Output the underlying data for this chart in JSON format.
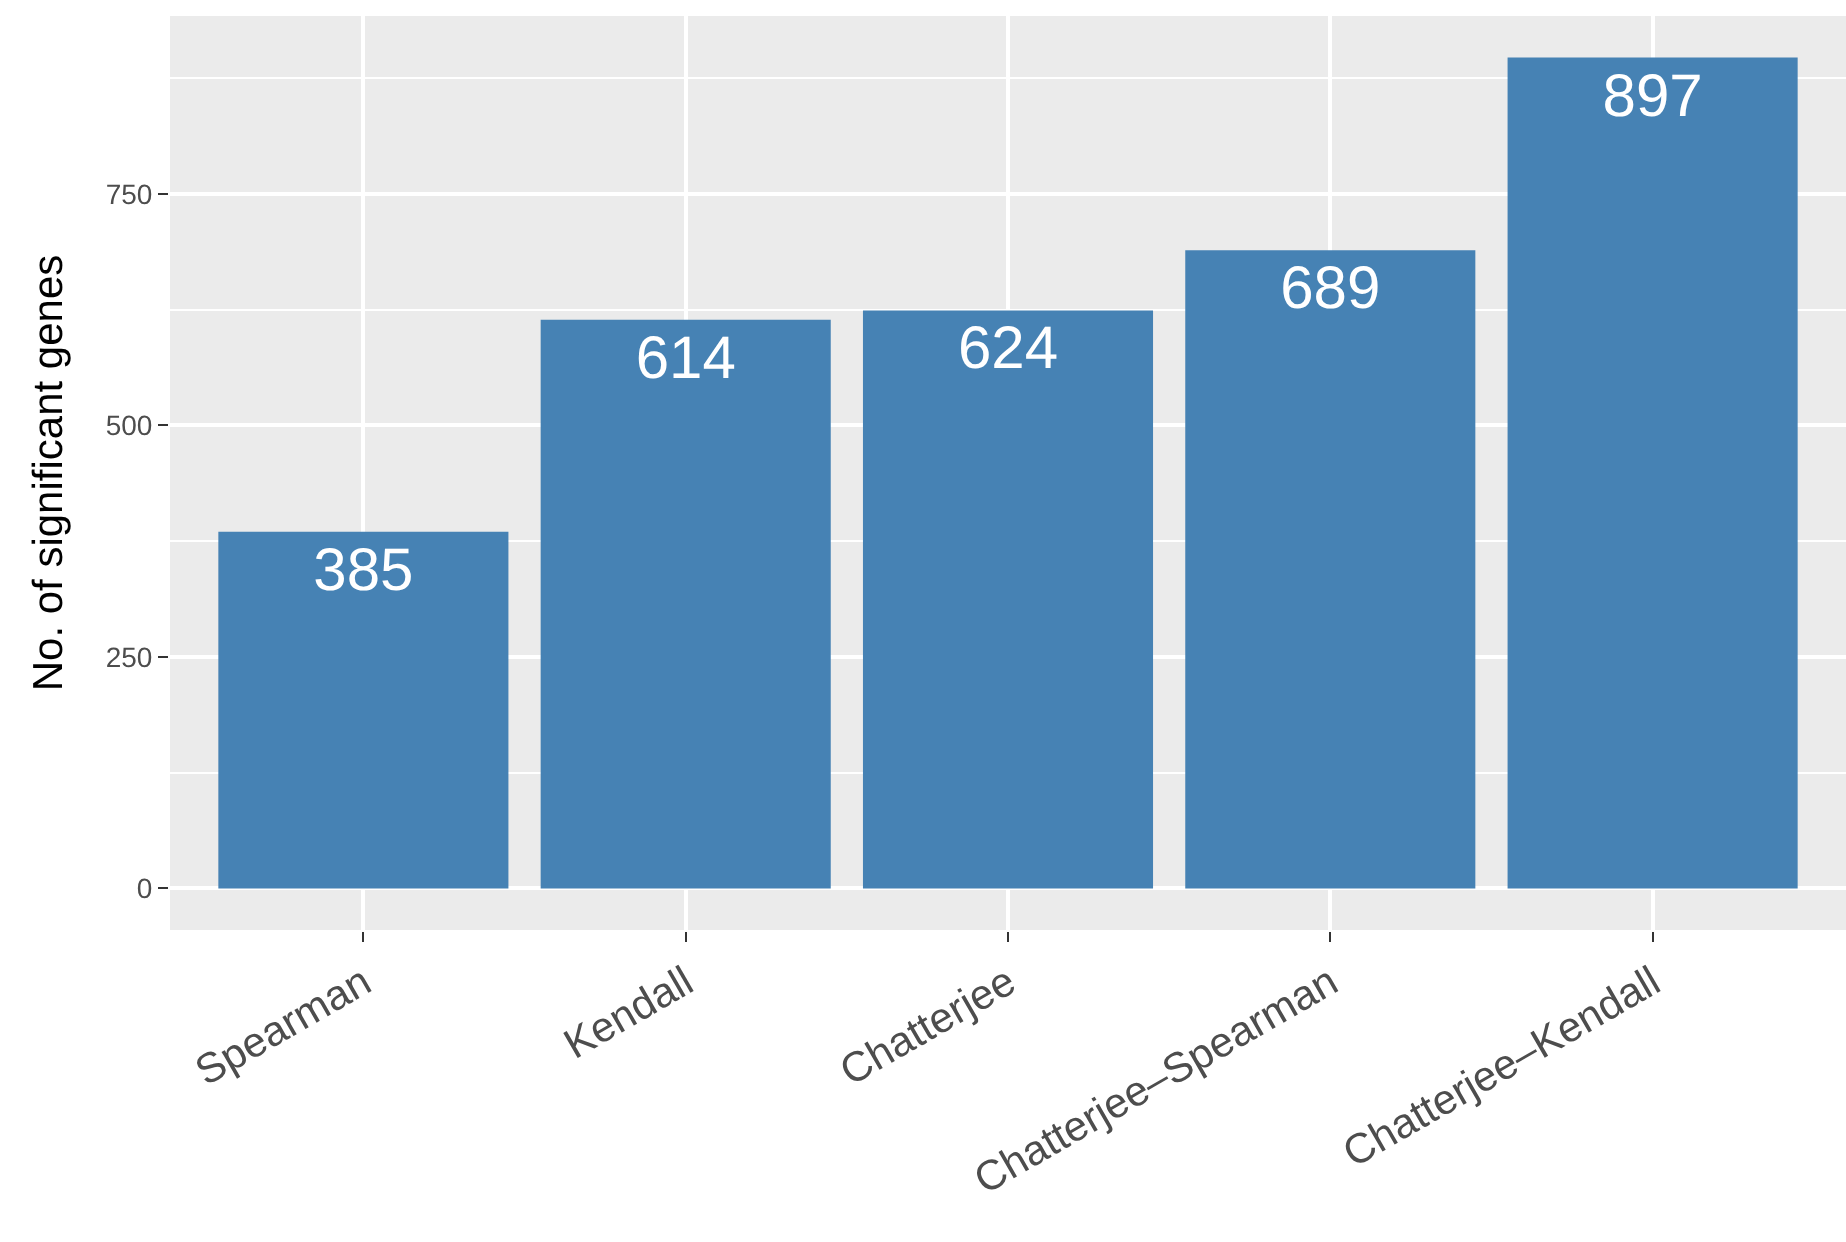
{
  "chart_data": {
    "type": "bar",
    "ylabel": "No. of significant genes",
    "categories": [
      "Spearman",
      "Kendall",
      "Chatterjee",
      "Chatterjee–Spearman",
      "Chatterjee–Kendall"
    ],
    "values": [
      385,
      614,
      624,
      689,
      897
    ],
    "color": "#4682b4",
    "ylim": [
      -44.85,
      941.85
    ],
    "yticks": [
      0,
      250,
      500,
      750
    ],
    "grid": true,
    "data_labels": true
  }
}
